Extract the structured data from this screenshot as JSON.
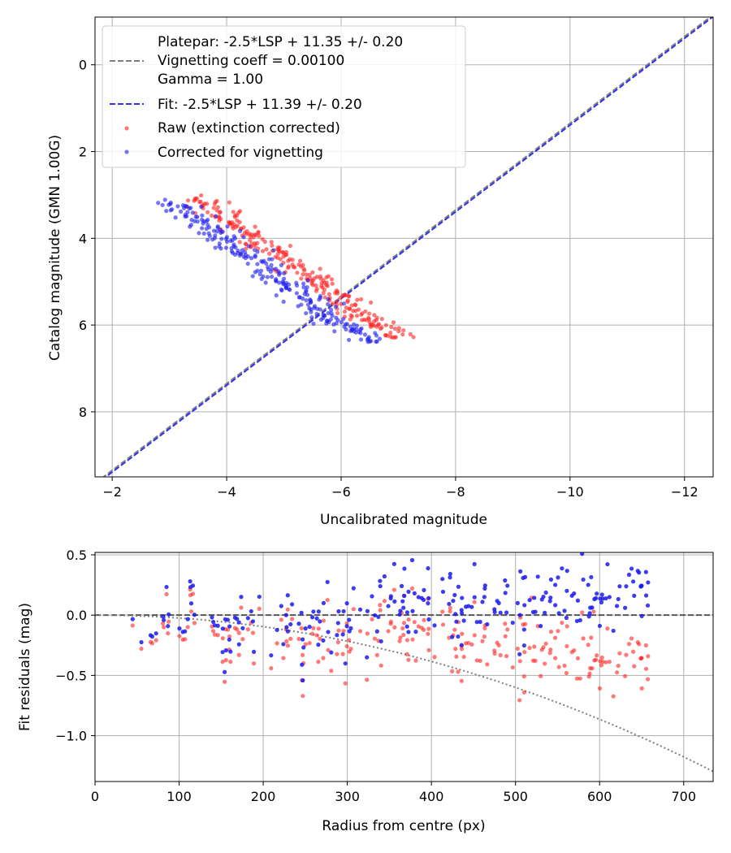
{
  "chart_data": [
    {
      "type": "scatter",
      "xlabel": "Uncalibrated magnitude",
      "ylabel": "Catalog magnitude (GMN 1.00G)",
      "xlim": [
        -1.7,
        -12.5
      ],
      "ylim": [
        -1.1,
        9.5
      ],
      "x_ticks": [
        -2,
        -4,
        -6,
        -8,
        -10,
        -12
      ],
      "x_tick_labels": [
        "−2",
        "−4",
        "−6",
        "−8",
        "−10",
        "−12"
      ],
      "y_ticks": [
        0,
        2,
        4,
        6,
        8
      ],
      "y_tick_labels": [
        "0",
        "2",
        "4",
        "6",
        "8"
      ],
      "grid": true,
      "legend_position": "upper-left",
      "legend": {
        "platepar_line1": "Platepar: -2.5*LSP + 11.35 +/- 0.20",
        "platepar_line2": "Vignetting coeff = 0.00100",
        "platepar_line3": "Gamma = 1.00",
        "fit": "Fit: -2.5*LSP + 11.39 +/- 0.20",
        "raw": "Raw (extinction corrected)",
        "corrected": "Corrected for vignetting"
      },
      "lines": [
        {
          "name": "Platepar",
          "slope": 1.0,
          "intercept": 11.35,
          "color": "#7f7f7f",
          "style": "dashed"
        },
        {
          "name": "Fit",
          "slope": 1.0,
          "intercept": 11.39,
          "color": "#3333ee",
          "style": "dashed"
        }
      ],
      "series": [
        {
          "name": "Raw (extinction corrected)",
          "color": "#ff2020",
          "n": 240,
          "seed": 7
        },
        {
          "name": "Corrected for vignetting",
          "color": "#1a1aee",
          "n": 240,
          "seed": 13
        }
      ]
    },
    {
      "type": "scatter",
      "xlabel": "Radius from centre (px)",
      "ylabel": "Fit residuals (mag)",
      "xlim": [
        0,
        735
      ],
      "ylim": [
        -1.38,
        0.52
      ],
      "x_ticks": [
        0,
        100,
        200,
        300,
        400,
        500,
        600,
        700
      ],
      "x_tick_labels": [
        "0",
        "100",
        "200",
        "300",
        "400",
        "500",
        "600",
        "700"
      ],
      "y_ticks": [
        0.5,
        0.0,
        -0.5,
        -1.0
      ],
      "y_tick_labels": [
        "0.5",
        "0.0",
        "−0.5",
        "−1.0"
      ],
      "grid": true,
      "reference_line": {
        "y": 0.0,
        "color": "#555555",
        "style": "dashed"
      },
      "vignetting_curve": {
        "coeff": 0.001,
        "scale": 1.3e-05,
        "color": "#7f7f7f",
        "style": "dotted"
      },
      "series": [
        {
          "name": "Raw (extinction corrected)",
          "color": "#ff2020",
          "n": 240,
          "seed": 7
        },
        {
          "name": "Corrected for vignetting",
          "color": "#1a1aee",
          "n": 240,
          "seed": 13
        }
      ]
    }
  ]
}
